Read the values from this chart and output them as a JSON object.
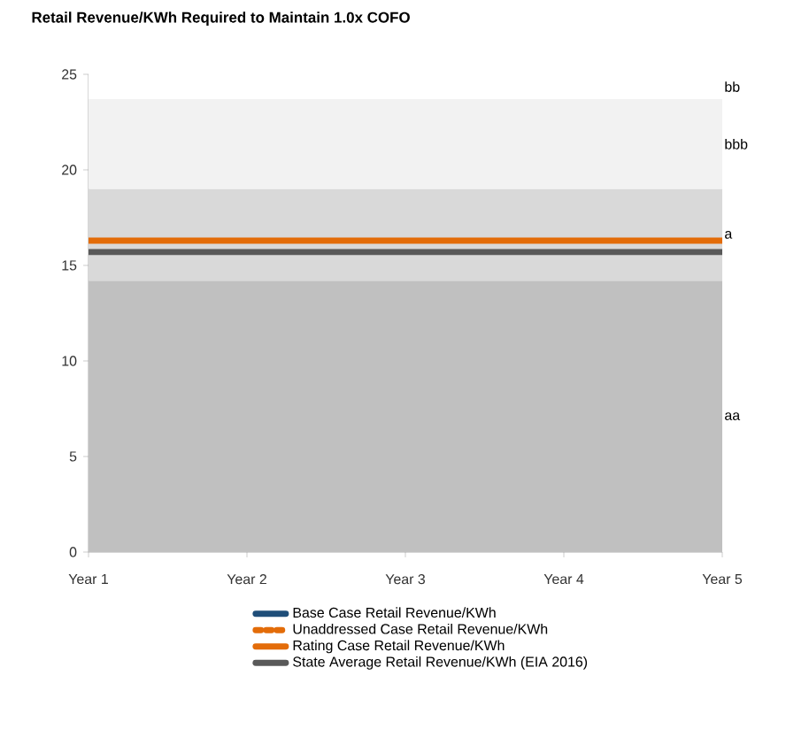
{
  "chart_data": {
    "type": "line",
    "title": "Retail Revenue/KWh Required to Maintain 1.0x COFO",
    "categories": [
      "Year 1",
      "Year 2",
      "Year 3",
      "Year 4",
      "Year 5"
    ],
    "series": [
      {
        "name": "Base Case Retail Revenue/KWh",
        "color": "#1f4e79",
        "values": [
          null,
          null,
          null,
          null,
          null
        ]
      },
      {
        "name": "Unaddressed Case Retail Revenue/KWh",
        "color": "#e36c09",
        "line_style": "dashed",
        "values": [
          null,
          null,
          null,
          null,
          null
        ]
      },
      {
        "name": "Rating Case Retail Revenue/KWh",
        "color": "#e36c09",
        "values": [
          16.3,
          16.3,
          16.3,
          16.3,
          16.3
        ]
      },
      {
        "name": "State Average Retail Revenue/KWh (EIA 2016)",
        "color": "#595959",
        "values": [
          15.7,
          15.7,
          15.7,
          15.7,
          15.7
        ]
      }
    ],
    "ylim": [
      0,
      25
    ],
    "yticks": [
      0,
      5,
      10,
      15,
      20,
      25
    ],
    "bands": [
      {
        "axis": "y",
        "from": 0,
        "to": 14.2,
        "label": "aa",
        "color": "#c0c0c0"
      },
      {
        "axis": "y",
        "from": 14.2,
        "to": 19,
        "label": "a",
        "color": "#d9d9d9"
      },
      {
        "axis": "y",
        "from": 19,
        "to": 23.7,
        "label": "bbb",
        "color": "#f2f2f2"
      },
      {
        "axis": "y",
        "from": 23.7,
        "to": 25,
        "label": "bb",
        "color": "#ffffff"
      }
    ],
    "legend": "bottom"
  }
}
